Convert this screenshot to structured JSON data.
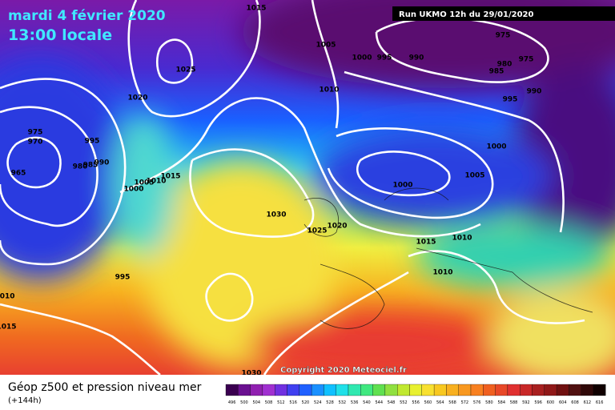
{
  "header": {
    "date": "mardi 4 février 2020",
    "time": "13:00 locale",
    "run": "Run UKMO 12h du 29/01/2020"
  },
  "copyright": "Copyright 2020 Meteociel.fr",
  "footer": {
    "title": "Géop z500 et pression niveau mer",
    "step": "(+144h)"
  },
  "isobar_labels": [
    1015,
    975,
    1005,
    1000,
    995,
    990,
    975,
    980,
    985,
    1025,
    1010,
    990,
    1020,
    995,
    975,
    970,
    995,
    1000,
    990,
    985,
    980,
    965,
    1015,
    1010,
    1005,
    1000,
    1005,
    1000,
    1030,
    1020,
    1025,
    1010,
    1015,
    1010,
    995,
    1010,
    1015,
    1030
  ],
  "colorbar_labels": [
    496,
    500,
    504,
    508,
    512,
    516,
    520,
    524,
    528,
    532,
    536,
    540,
    544,
    548,
    552,
    556,
    560,
    564,
    568,
    572,
    576,
    580,
    584,
    588,
    592,
    596,
    600,
    604,
    608,
    612,
    616
  ]
}
